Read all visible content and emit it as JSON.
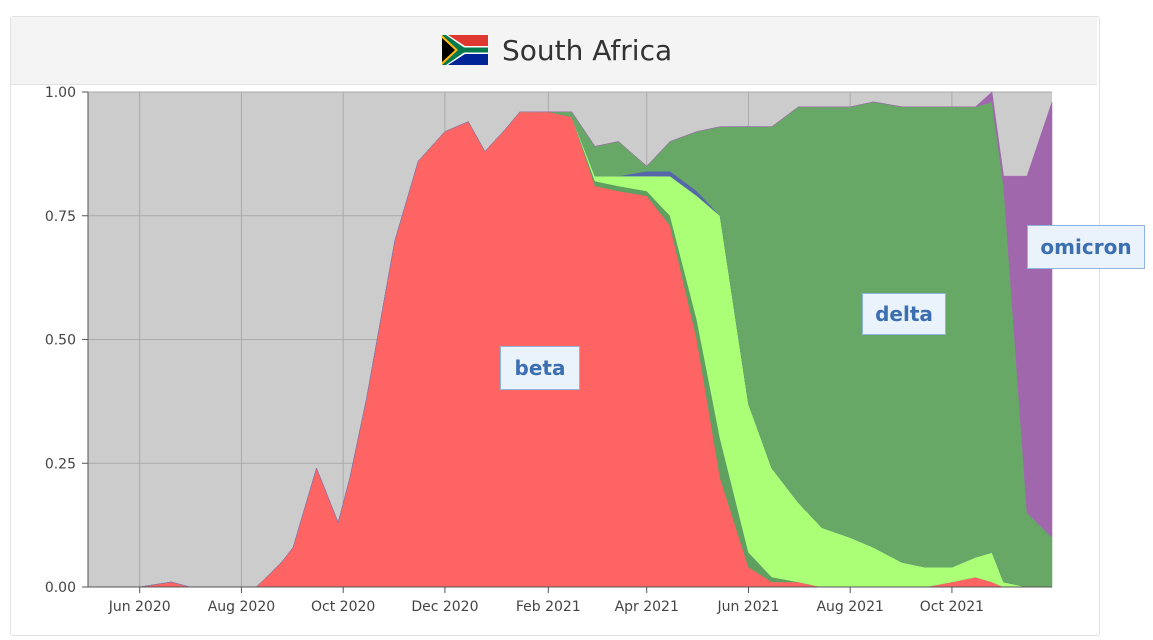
{
  "header": {
    "title": "South Africa",
    "flag_icon": "south-africa-flag-icon"
  },
  "chart_data": {
    "type": "area",
    "stacked": true,
    "x_axis": {
      "start": "2020-05-01",
      "end": "2021-11-30",
      "ticks": [
        {
          "label": "Jun 2020",
          "date": "2020-06-01"
        },
        {
          "label": "Aug 2020",
          "date": "2020-08-01"
        },
        {
          "label": "Oct 2020",
          "date": "2020-10-01"
        },
        {
          "label": "Dec 2020",
          "date": "2020-12-01"
        },
        {
          "label": "Feb 2021",
          "date": "2021-02-01"
        },
        {
          "label": "Apr 2021",
          "date": "2021-04-01"
        },
        {
          "label": "Jun 2021",
          "date": "2021-06-01"
        },
        {
          "label": "Aug 2021",
          "date": "2021-08-01"
        },
        {
          "label": "Oct 2021",
          "date": "2021-10-01"
        }
      ]
    },
    "y_axis": {
      "ylim": [
        0,
        1
      ],
      "ticks": [
        "0.00",
        "0.25",
        "0.50",
        "0.75",
        "1.00"
      ]
    },
    "grid": true,
    "background_color": "#cccccc",
    "dates": [
      "2020-05-01",
      "2020-06-01",
      "2020-06-20",
      "2020-07-01",
      "2020-08-01",
      "2020-08-10",
      "2020-08-25",
      "2020-09-01",
      "2020-09-15",
      "2020-09-28",
      "2020-10-05",
      "2020-10-15",
      "2020-11-01",
      "2020-11-15",
      "2020-12-01",
      "2020-12-15",
      "2020-12-25",
      "2021-01-05",
      "2021-01-15",
      "2021-02-01",
      "2021-02-15",
      "2021-03-01",
      "2021-03-15",
      "2021-04-01",
      "2021-04-15",
      "2021-05-01",
      "2021-05-15",
      "2021-06-01",
      "2021-06-15",
      "2021-07-01",
      "2021-07-15",
      "2021-08-01",
      "2021-08-15",
      "2021-09-01",
      "2021-09-15",
      "2021-10-01",
      "2021-10-15",
      "2021-10-25",
      "2021-11-01",
      "2021-11-15",
      "2021-11-30"
    ],
    "series": [
      {
        "name": "beta",
        "color": "#ff6464",
        "values": [
          0,
          0,
          0.01,
          0,
          0,
          0,
          0.05,
          0.08,
          0.24,
          0.13,
          0.22,
          0.38,
          0.7,
          0.86,
          0.92,
          0.94,
          0.88,
          0.92,
          0.96,
          0.96,
          0.95,
          0.81,
          0.8,
          0.79,
          0.73,
          0.5,
          0.22,
          0.04,
          0.01,
          0.01,
          0,
          0,
          0,
          0,
          0,
          0.01,
          0.02,
          0.01,
          0,
          0,
          0
        ]
      },
      {
        "name": "",
        "color": "#5f9f5f",
        "values": [
          0,
          0,
          0,
          0,
          0,
          0,
          0,
          0,
          0,
          0,
          0,
          0,
          0,
          0,
          0,
          0,
          0,
          0,
          0,
          0,
          0,
          0.01,
          0.01,
          0.01,
          0.02,
          0.04,
          0.08,
          0.03,
          0.01,
          0,
          0,
          0,
          0,
          0,
          0,
          0,
          0,
          0,
          0,
          0,
          0
        ]
      },
      {
        "name": "",
        "color": "#aaff77",
        "values": [
          0,
          0,
          0,
          0,
          0,
          0,
          0,
          0,
          0,
          0,
          0,
          0,
          0,
          0,
          0,
          0,
          0,
          0,
          0,
          0,
          0,
          0.01,
          0.02,
          0.03,
          0.08,
          0.25,
          0.45,
          0.3,
          0.22,
          0.16,
          0.12,
          0.1,
          0.08,
          0.05,
          0.04,
          0.03,
          0.04,
          0.06,
          0.01,
          0,
          0
        ]
      },
      {
        "name": "",
        "color": "#5566aa",
        "values": [
          0,
          0,
          0,
          0,
          0,
          0,
          0,
          0,
          0,
          0,
          0,
          0,
          0,
          0,
          0,
          0,
          0,
          0,
          0,
          0,
          0,
          0,
          0,
          0.01,
          0.01,
          0.01,
          0,
          0,
          0,
          0,
          0,
          0,
          0,
          0,
          0,
          0,
          0,
          0,
          0,
          0,
          0
        ]
      },
      {
        "name": "delta",
        "color": "#67a867",
        "values": [
          0,
          0,
          0,
          0,
          0,
          0,
          0,
          0,
          0,
          0,
          0,
          0,
          0,
          0,
          0,
          0,
          0,
          0,
          0,
          0,
          0.01,
          0.06,
          0.07,
          0.01,
          0.06,
          0.12,
          0.18,
          0.56,
          0.69,
          0.8,
          0.85,
          0.87,
          0.9,
          0.92,
          0.93,
          0.93,
          0.91,
          0.91,
          0.8,
          0.15,
          0.1
        ]
      },
      {
        "name": "omicron",
        "color": "#a067ad",
        "values": [
          0,
          0,
          0,
          0,
          0,
          0,
          0,
          0,
          0,
          0,
          0,
          0,
          0,
          0,
          0,
          0,
          0,
          0,
          0,
          0,
          0,
          0,
          0,
          0,
          0,
          0,
          0,
          0,
          0,
          0,
          0,
          0,
          0,
          0,
          0,
          0,
          0,
          0.02,
          0.02,
          0.68,
          0.88
        ]
      }
    ],
    "annotations": [
      {
        "text": "beta",
        "series": "beta"
      },
      {
        "text": "delta",
        "series": "delta"
      },
      {
        "text": "omicron",
        "series": "omicron"
      }
    ]
  }
}
